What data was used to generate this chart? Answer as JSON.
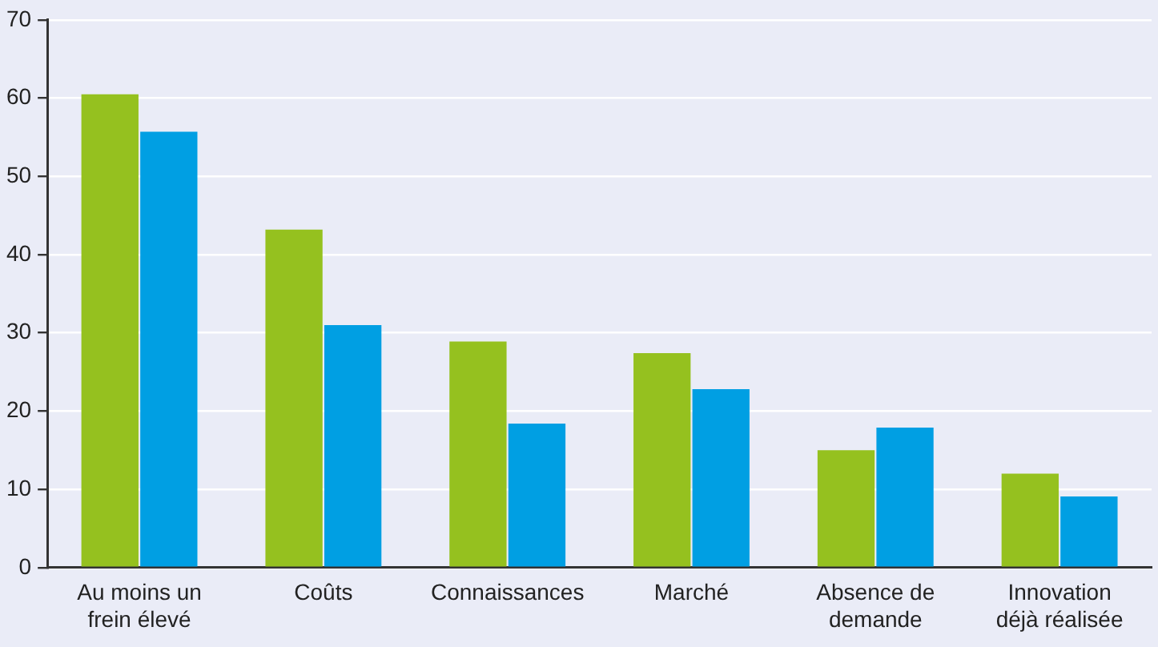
{
  "chart_data": {
    "type": "bar",
    "categories": [
      "Au moins un frein élevé",
      "Coûts",
      "Connaissances",
      "Marché",
      "Absence de demande",
      "Innovation déjà réalisée"
    ],
    "series": [
      {
        "color": "#95c11f",
        "values": [
          60.5,
          43.2,
          28.9,
          27.4,
          15.0,
          12.0
        ]
      },
      {
        "color": "#009fe3",
        "values": [
          55.7,
          31.0,
          18.4,
          22.8,
          17.9,
          9.1
        ]
      }
    ],
    "ylim": [
      0,
      70
    ],
    "yticks": [
      0,
      10,
      20,
      30,
      40,
      50,
      60,
      70
    ],
    "grid": "y",
    "legend": false
  }
}
